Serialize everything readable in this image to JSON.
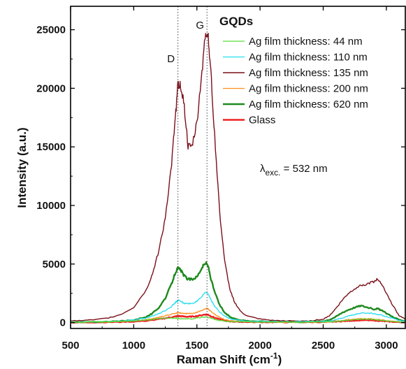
{
  "chart_data": {
    "type": "line",
    "title": "GQDs",
    "xlabel": "Raman Shift (cm",
    "xlabel_sup": "-1",
    "xlabel_end": ")",
    "ylabel": "Intensity (a.u.)",
    "xlim": [
      500,
      3150
    ],
    "ylim": [
      -500,
      27000
    ],
    "x_ticks": [
      500,
      1000,
      1500,
      2000,
      2500,
      3000
    ],
    "x_tick_labels": [
      "500",
      "1000",
      "1500",
      "2000",
      "2500",
      "3000"
    ],
    "y_ticks": [
      0,
      5000,
      10000,
      15000,
      20000,
      25000
    ],
    "y_tick_labels": [
      "0",
      "5000",
      "10000",
      "15000",
      "20000",
      "25000"
    ],
    "grid": false,
    "legend_position": "top-right",
    "peak_markers": [
      {
        "label": "D",
        "x": 1350
      },
      {
        "label": "G",
        "x": 1580
      }
    ],
    "annotation": {
      "lambda": "λ",
      "sub": "exc.",
      "text": " = 532 nm"
    },
    "x": [
      500,
      600,
      700,
      800,
      900,
      1000,
      1100,
      1150,
      1200,
      1250,
      1300,
      1330,
      1350,
      1370,
      1400,
      1430,
      1460,
      1500,
      1540,
      1570,
      1590,
      1610,
      1640,
      1680,
      1720,
      1760,
      1800,
      1850,
      1900,
      2000,
      2100,
      2200,
      2300,
      2400,
      2500,
      2550,
      2600,
      2650,
      2700,
      2750,
      2800,
      2850,
      2900,
      2930,
      2960,
      3000,
      3050,
      3100,
      3150
    ],
    "series": [
      {
        "name": "Ag film thickness: 44  nm",
        "color": "#55dd33",
        "width": 1.3,
        "values": [
          50,
          60,
          70,
          80,
          110,
          150,
          230,
          280,
          330,
          370,
          380,
          360,
          350,
          340,
          320,
          310,
          320,
          380,
          450,
          480,
          450,
          380,
          280,
          180,
          120,
          90,
          80,
          70,
          60,
          60,
          50,
          50,
          50,
          50,
          60,
          70,
          110,
          150,
          210,
          260,
          300,
          300,
          270,
          240,
          200,
          140,
          90,
          60,
          50
        ]
      },
      {
        "name": "Ag film thickness: 110  nm",
        "color": "#22ddee",
        "width": 1.3,
        "values": [
          60,
          70,
          80,
          100,
          150,
          220,
          400,
          560,
          780,
          1050,
          1400,
          1700,
          1900,
          1850,
          1650,
          1600,
          1650,
          1800,
          2200,
          2600,
          2450,
          2000,
          1400,
          900,
          550,
          350,
          250,
          180,
          130,
          100,
          90,
          80,
          80,
          90,
          110,
          140,
          230,
          380,
          560,
          700,
          800,
          820,
          760,
          700,
          640,
          520,
          380,
          200,
          120
        ]
      },
      {
        "name": "Ag film thickness: 135  nm",
        "color": "#7a0f18",
        "width": 1.4,
        "values": [
          150,
          180,
          250,
          400,
          700,
          1300,
          2800,
          4200,
          6200,
          9000,
          13500,
          17500,
          20300,
          20400,
          18500,
          15000,
          15000,
          17000,
          21500,
          24800,
          24500,
          21500,
          16000,
          9500,
          5200,
          2900,
          1700,
          900,
          550,
          300,
          180,
          150,
          130,
          150,
          300,
          600,
          1200,
          1900,
          2500,
          2900,
          3200,
          3300,
          3500,
          3700,
          3400,
          2500,
          1500,
          600,
          300
        ]
      },
      {
        "name": "Ag film thickness: 200  nm",
        "color": "#ff8c1a",
        "width": 1.3,
        "values": [
          40,
          50,
          60,
          70,
          100,
          150,
          260,
          350,
          460,
          580,
          720,
          800,
          850,
          830,
          780,
          760,
          780,
          880,
          1050,
          1200,
          1150,
          950,
          700,
          440,
          260,
          170,
          130,
          100,
          80,
          60,
          50,
          50,
          50,
          50,
          60,
          70,
          120,
          180,
          250,
          300,
          330,
          330,
          300,
          270,
          240,
          170,
          110,
          70,
          50
        ]
      },
      {
        "name": "Ag film thickness: 620  nm",
        "color": "#1e8a1e",
        "width": 2.4,
        "values": [
          30,
          40,
          60,
          80,
          130,
          220,
          500,
          800,
          1300,
          2100,
          3300,
          4300,
          4650,
          4500,
          4000,
          3700,
          3700,
          3900,
          4700,
          5100,
          4800,
          3800,
          2600,
          1500,
          850,
          500,
          330,
          220,
          150,
          100,
          80,
          70,
          60,
          70,
          130,
          250,
          500,
          850,
          1100,
          1300,
          1450,
          1300,
          1150,
          1200,
          1050,
          800,
          500,
          250,
          120
        ]
      },
      {
        "name": "Glass",
        "color": "#ee2222",
        "width": 2.4,
        "values": [
          20,
          20,
          30,
          40,
          60,
          90,
          160,
          220,
          300,
          380,
          460,
          520,
          560,
          550,
          520,
          500,
          510,
          560,
          640,
          700,
          670,
          560,
          420,
          280,
          170,
          110,
          80,
          60,
          50,
          40,
          40,
          40,
          40,
          40,
          50,
          60,
          90,
          120,
          150,
          180,
          200,
          200,
          180,
          160,
          140,
          100,
          70,
          40,
          30
        ]
      }
    ]
  }
}
